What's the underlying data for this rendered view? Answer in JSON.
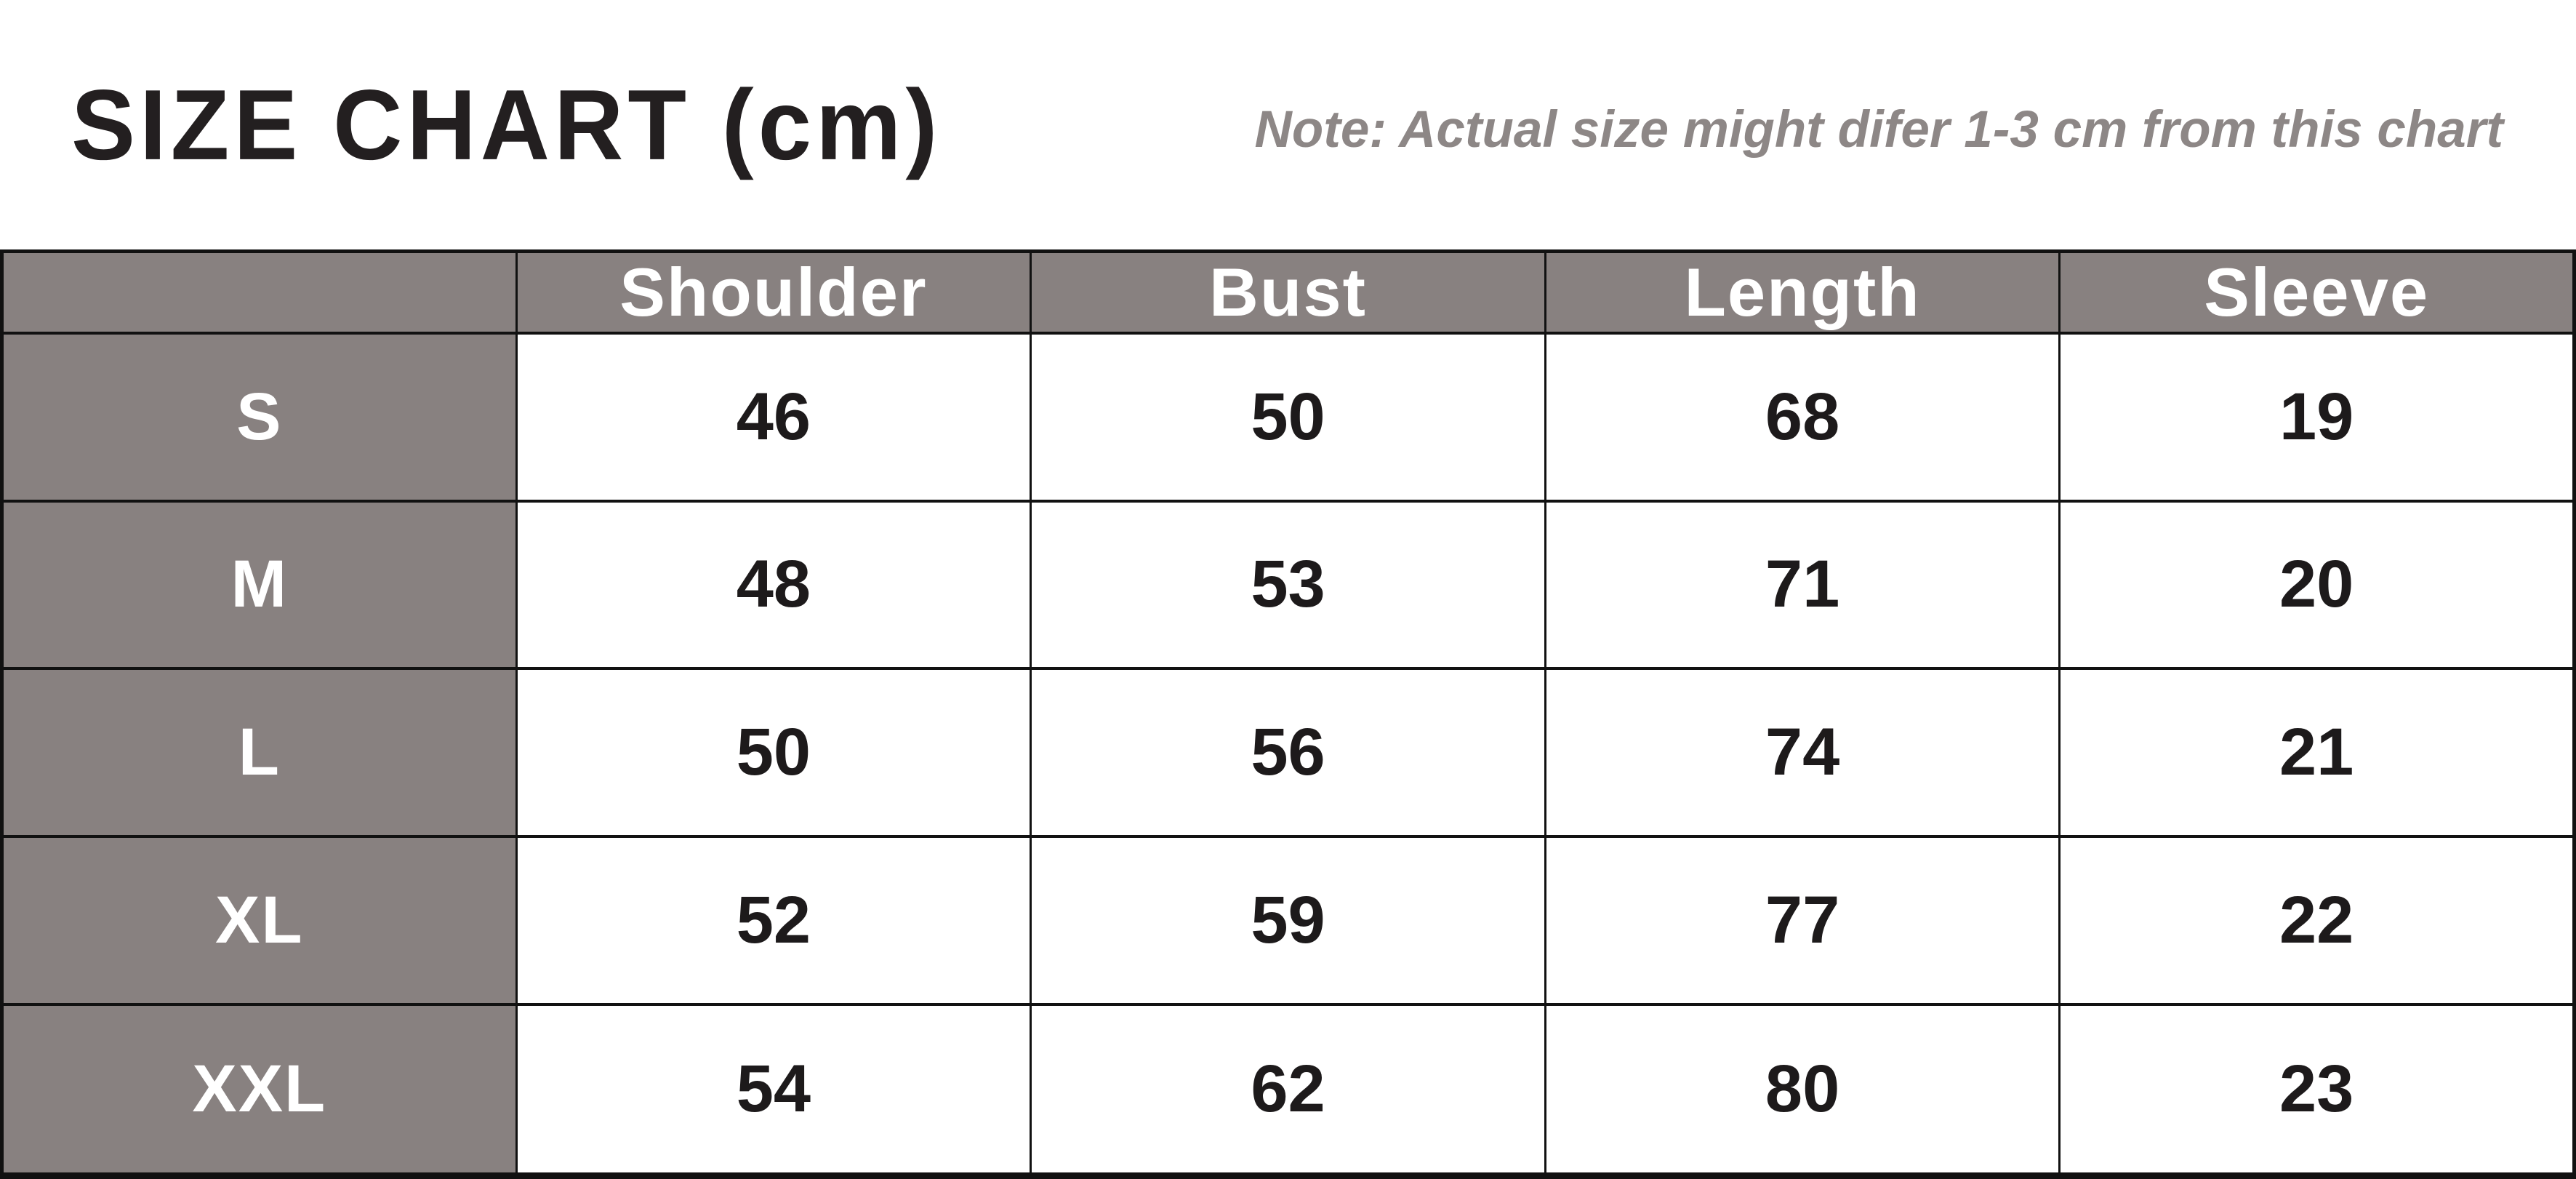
{
  "header": {
    "title": "SIZE CHART (cm)",
    "note": "Note: Actual size might difer 1-3 cm from this chart"
  },
  "table": {
    "corner_label": "",
    "columns": [
      "Shoulder",
      "Bust",
      "Length",
      "Sleeve"
    ],
    "rows": [
      {
        "size": "S",
        "values": [
          "46",
          "50",
          "68",
          "19"
        ]
      },
      {
        "size": "M",
        "values": [
          "48",
          "53",
          "71",
          "20"
        ]
      },
      {
        "size": "L",
        "values": [
          "50",
          "56",
          "74",
          "21"
        ]
      },
      {
        "size": "XL",
        "values": [
          "52",
          "59",
          "77",
          "22"
        ]
      },
      {
        "size": "XXL",
        "values": [
          "54",
          "62",
          "80",
          "23"
        ]
      }
    ]
  },
  "colors": {
    "header_cell_bg": "#888180",
    "header_cell_text": "#ffffff",
    "value_text": "#1d1a1b",
    "title_text": "#231f20",
    "note_text": "#8d8786",
    "border": "#111111",
    "page_bg": "#ffffff"
  },
  "chart_data": {
    "type": "table",
    "title": "SIZE CHART (cm)",
    "subtitle": "Note: Actual size might difer 1-3 cm from this chart",
    "units": "cm",
    "columns": [
      "",
      "Shoulder",
      "Bust",
      "Length",
      "Sleeve"
    ],
    "rows": [
      [
        "S",
        46,
        50,
        68,
        19
      ],
      [
        "M",
        48,
        53,
        71,
        20
      ],
      [
        "L",
        50,
        56,
        74,
        21
      ],
      [
        "XL",
        52,
        59,
        77,
        22
      ],
      [
        "XXL",
        54,
        62,
        80,
        23
      ]
    ]
  }
}
